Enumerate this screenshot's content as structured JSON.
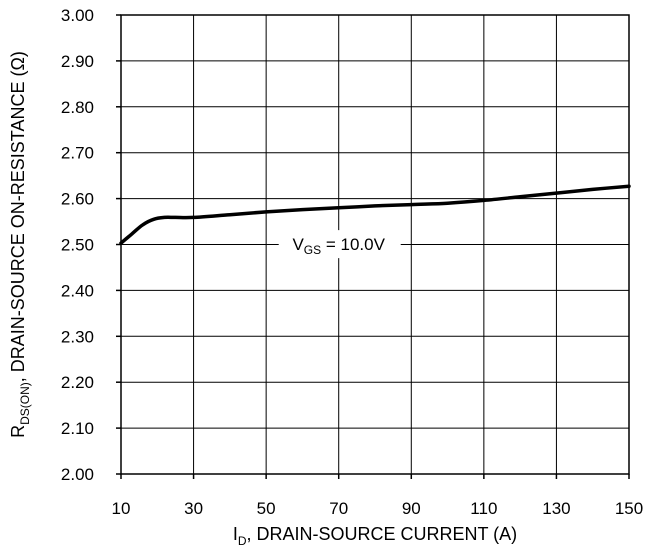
{
  "chart_data": {
    "type": "line",
    "title": "",
    "xlabel": {
      "main": "I",
      "sub": "D",
      "rest": ", DRAIN-SOURCE CURRENT (A)"
    },
    "ylabel": {
      "main": "R",
      "sub": "DS(ON)",
      "rest": ", DRAIN-SOURCE ON-RESISTANCE (Ω)"
    },
    "xlim": [
      10,
      150
    ],
    "ylim": [
      2.0,
      3.0
    ],
    "x_ticks": [
      10,
      30,
      50,
      70,
      90,
      110,
      130,
      150
    ],
    "x_tick_labels": [
      "10",
      "30",
      "50",
      "70",
      "90",
      "110",
      "130",
      "150"
    ],
    "y_ticks": [
      2.0,
      2.1,
      2.2,
      2.3,
      2.4,
      2.5,
      2.6,
      2.7,
      2.8,
      2.9,
      3.0
    ],
    "y_tick_labels": [
      "2.00",
      "2.10",
      "2.20",
      "2.30",
      "2.40",
      "2.50",
      "2.60",
      "2.70",
      "2.80",
      "2.90",
      "3.00"
    ],
    "grid": true,
    "line_color": "#000000",
    "series": [
      {
        "x": [
          10,
          13,
          16,
          19,
          22,
          25,
          30,
          40,
          50,
          60,
          70,
          80,
          90,
          100,
          110,
          120,
          130,
          140,
          150
        ],
        "y": [
          2.503,
          2.523,
          2.543,
          2.555,
          2.559,
          2.559,
          2.559,
          2.565,
          2.571,
          2.576,
          2.58,
          2.584,
          2.587,
          2.59,
          2.596,
          2.604,
          2.612,
          2.62,
          2.627
        ]
      }
    ],
    "annotations": [
      {
        "main": "V",
        "sub": "GS",
        "rest": " = 10.0V",
        "x": 70,
        "y": 2.503
      }
    ]
  }
}
